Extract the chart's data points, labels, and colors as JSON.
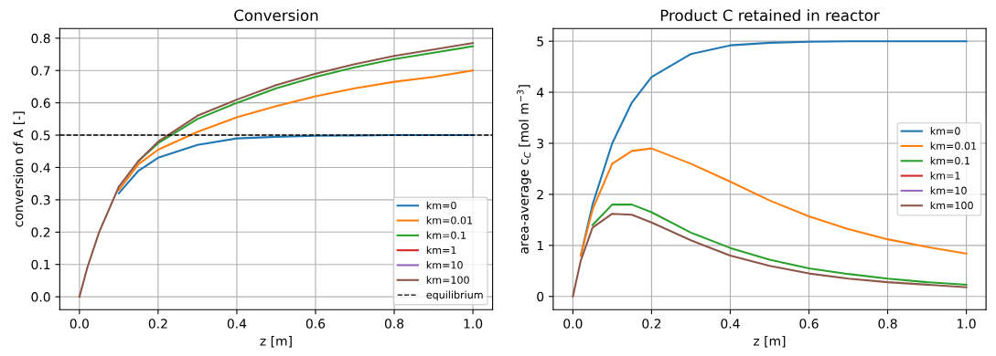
{
  "chart_data": [
    {
      "type": "line",
      "title": "Conversion",
      "xlabel": "z [m]",
      "ylabel": "conversion of A [-]",
      "x": [
        0,
        0.02,
        0.05,
        0.1,
        0.15,
        0.2,
        0.3,
        0.4,
        0.5,
        0.6,
        0.7,
        0.8,
        0.9,
        1.0
      ],
      "series": [
        {
          "name": "km=0",
          "color": "#1f77b4",
          "values": [
            null,
            null,
            null,
            0.32,
            0.39,
            0.43,
            0.47,
            0.49,
            0.495,
            0.498,
            0.499,
            0.5,
            0.5,
            0.5
          ]
        },
        {
          "name": "km=0.01",
          "color": "#ff7f0e",
          "values": [
            null,
            null,
            null,
            0.33,
            0.41,
            0.455,
            0.51,
            0.555,
            0.59,
            0.62,
            0.645,
            0.665,
            0.68,
            0.7
          ]
        },
        {
          "name": "km=0.1",
          "color": "#2ca02c",
          "values": [
            null,
            null,
            null,
            null,
            0.42,
            0.475,
            0.55,
            0.6,
            0.645,
            0.68,
            0.71,
            0.735,
            0.755,
            0.775
          ]
        },
        {
          "name": "km=1",
          "color": "#d62728",
          "values": [
            null,
            null,
            null,
            null,
            null,
            null,
            null,
            null,
            null,
            null,
            null,
            null,
            null,
            null
          ]
        },
        {
          "name": "km=10",
          "color": "#9467bd",
          "values": [
            null,
            null,
            null,
            null,
            null,
            null,
            null,
            null,
            null,
            null,
            null,
            null,
            null,
            null
          ]
        },
        {
          "name": "km=100",
          "color": "#8c564b",
          "values": [
            0,
            0.09,
            0.2,
            0.34,
            0.42,
            0.48,
            0.56,
            0.61,
            0.655,
            0.69,
            0.72,
            0.745,
            0.765,
            0.785
          ]
        }
      ],
      "ref_lines": [
        {
          "axis": "y",
          "value": 0.5,
          "label": "equilibrium",
          "color": "#000000",
          "line_style": "dashed"
        }
      ],
      "xlim": [
        -0.05,
        1.05
      ],
      "ylim": [
        -0.04,
        0.83
      ],
      "xticks": [
        {
          "value": 0,
          "label": "0.0"
        },
        {
          "value": 0.2,
          "label": "0.2"
        },
        {
          "value": 0.4,
          "label": "0.4"
        },
        {
          "value": 0.6,
          "label": "0.6"
        },
        {
          "value": 0.8,
          "label": "0.8"
        },
        {
          "value": 1.0,
          "label": "1.0"
        }
      ],
      "yticks": [
        {
          "value": 0,
          "label": "0.0"
        },
        0.1,
        0.2,
        0.3,
        0.4,
        0.5,
        0.6,
        0.7,
        0.8
      ],
      "grid": true,
      "legend": "lower right",
      "line_style": "solid",
      "marker": "none"
    },
    {
      "type": "line",
      "title": "Product C retained in reactor",
      "xlabel": "z [m]",
      "ylabel": "area-average c$_{C}$ [mol m$^{−3}$]",
      "x": [
        0,
        0.02,
        0.05,
        0.1,
        0.15,
        0.2,
        0.3,
        0.4,
        0.5,
        0.6,
        0.7,
        0.8,
        0.9,
        1.0
      ],
      "series": [
        {
          "name": "km=0",
          "color": "#1f77b4",
          "values": [
            null,
            0.8,
            1.8,
            3.0,
            3.8,
            4.3,
            4.75,
            4.92,
            4.97,
            4.99,
            5.0,
            5.0,
            5.0,
            5.0
          ]
        },
        {
          "name": "km=0.01",
          "color": "#ff7f0e",
          "values": [
            null,
            0.8,
            1.7,
            2.6,
            2.85,
            2.9,
            2.6,
            2.25,
            1.88,
            1.57,
            1.32,
            1.12,
            0.97,
            0.84
          ]
        },
        {
          "name": "km=0.1",
          "color": "#2ca02c",
          "values": [
            null,
            null,
            1.4,
            1.8,
            1.8,
            1.65,
            1.25,
            0.95,
            0.72,
            0.55,
            0.44,
            0.35,
            0.28,
            0.23
          ]
        },
        {
          "name": "km=1",
          "color": "#d62728",
          "values": [
            null,
            null,
            null,
            null,
            null,
            null,
            null,
            null,
            null,
            null,
            null,
            null,
            null,
            null
          ]
        },
        {
          "name": "km=10",
          "color": "#9467bd",
          "values": [
            null,
            null,
            null,
            null,
            null,
            null,
            null,
            null,
            null,
            null,
            null,
            null,
            null,
            null
          ]
        },
        {
          "name": "km=100",
          "color": "#8c564b",
          "values": [
            0,
            0.7,
            1.35,
            1.62,
            1.6,
            1.45,
            1.1,
            0.8,
            0.6,
            0.45,
            0.35,
            0.28,
            0.23,
            0.18
          ]
        }
      ],
      "xlim": [
        -0.05,
        1.05
      ],
      "ylim": [
        -0.26,
        5.25
      ],
      "xticks": [
        {
          "value": 0,
          "label": "0.0"
        },
        {
          "value": 0.2,
          "label": "0.2"
        },
        {
          "value": 0.4,
          "label": "0.4"
        },
        {
          "value": 0.6,
          "label": "0.6"
        },
        {
          "value": 0.8,
          "label": "0.8"
        },
        {
          "value": 1.0,
          "label": "1.0"
        }
      ],
      "yticks": [
        0,
        1,
        2,
        3,
        4,
        5
      ],
      "grid": true,
      "legend": "center right",
      "line_style": "solid",
      "marker": "none"
    }
  ]
}
